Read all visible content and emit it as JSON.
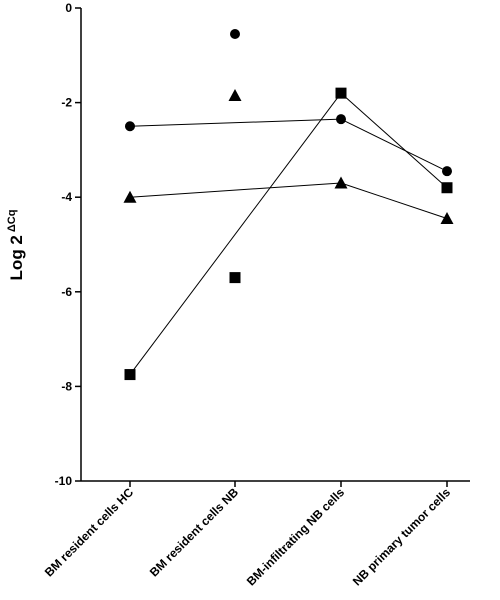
{
  "chart_data": {
    "type": "scatter",
    "categories": [
      "BM resident cells HC",
      "BM resident cells NB",
      "BM-infiltrating NB cells",
      "NB primary tumor cells"
    ],
    "ylabel": "Log 2",
    "ylabel_superscript": "ΔCq",
    "xlabel": "",
    "title": "",
    "ylim": [
      -10,
      0
    ],
    "yticks": [
      0,
      -2,
      -4,
      -6,
      -8,
      -10
    ],
    "ytick_labels": [
      "0",
      "-2",
      "-4",
      "-6",
      "-8",
      "-10"
    ],
    "grid": false,
    "legend": "none",
    "series": [
      {
        "marker": "circle",
        "values": [
          -2.5,
          -0.55,
          -2.35,
          -3.45
        ],
        "connect": [
          [
            0,
            2
          ],
          [
            2,
            3
          ]
        ]
      },
      {
        "marker": "triangle",
        "values": [
          -4.0,
          -1.85,
          -3.7,
          -4.45
        ],
        "connect": [
          [
            0,
            2
          ],
          [
            2,
            3
          ]
        ]
      },
      {
        "marker": "square",
        "values": [
          -7.75,
          -5.7,
          -1.8,
          -3.8
        ],
        "connect": [
          [
            0,
            2
          ],
          [
            2,
            3
          ]
        ]
      }
    ],
    "colors": {
      "marker": "#000000",
      "line": "#000000",
      "axis": "#000000"
    }
  }
}
